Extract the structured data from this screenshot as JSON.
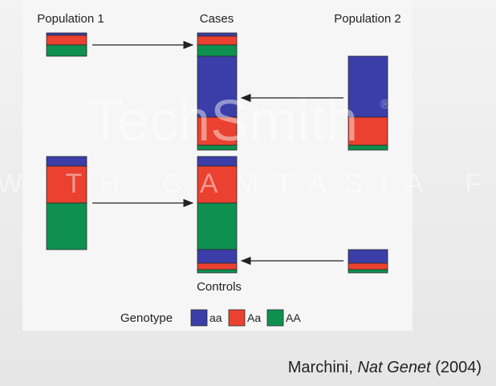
{
  "labels": {
    "population1": "Population 1",
    "cases": "Cases",
    "population2": "Population 2",
    "controls": "Controls"
  },
  "legend": {
    "title": "Genotype",
    "items": [
      {
        "label": "aa"
      },
      {
        "label": "Aa"
      },
      {
        "label": "AA"
      }
    ]
  },
  "citation": {
    "author": "Marchini,",
    "journal": "Nat Genet",
    "year": "(2004)"
  },
  "watermark": {
    "brand": "TechSmith",
    "mark": "®",
    "banner": "WITH CAMTASIA FREE TRIAL"
  }
}
